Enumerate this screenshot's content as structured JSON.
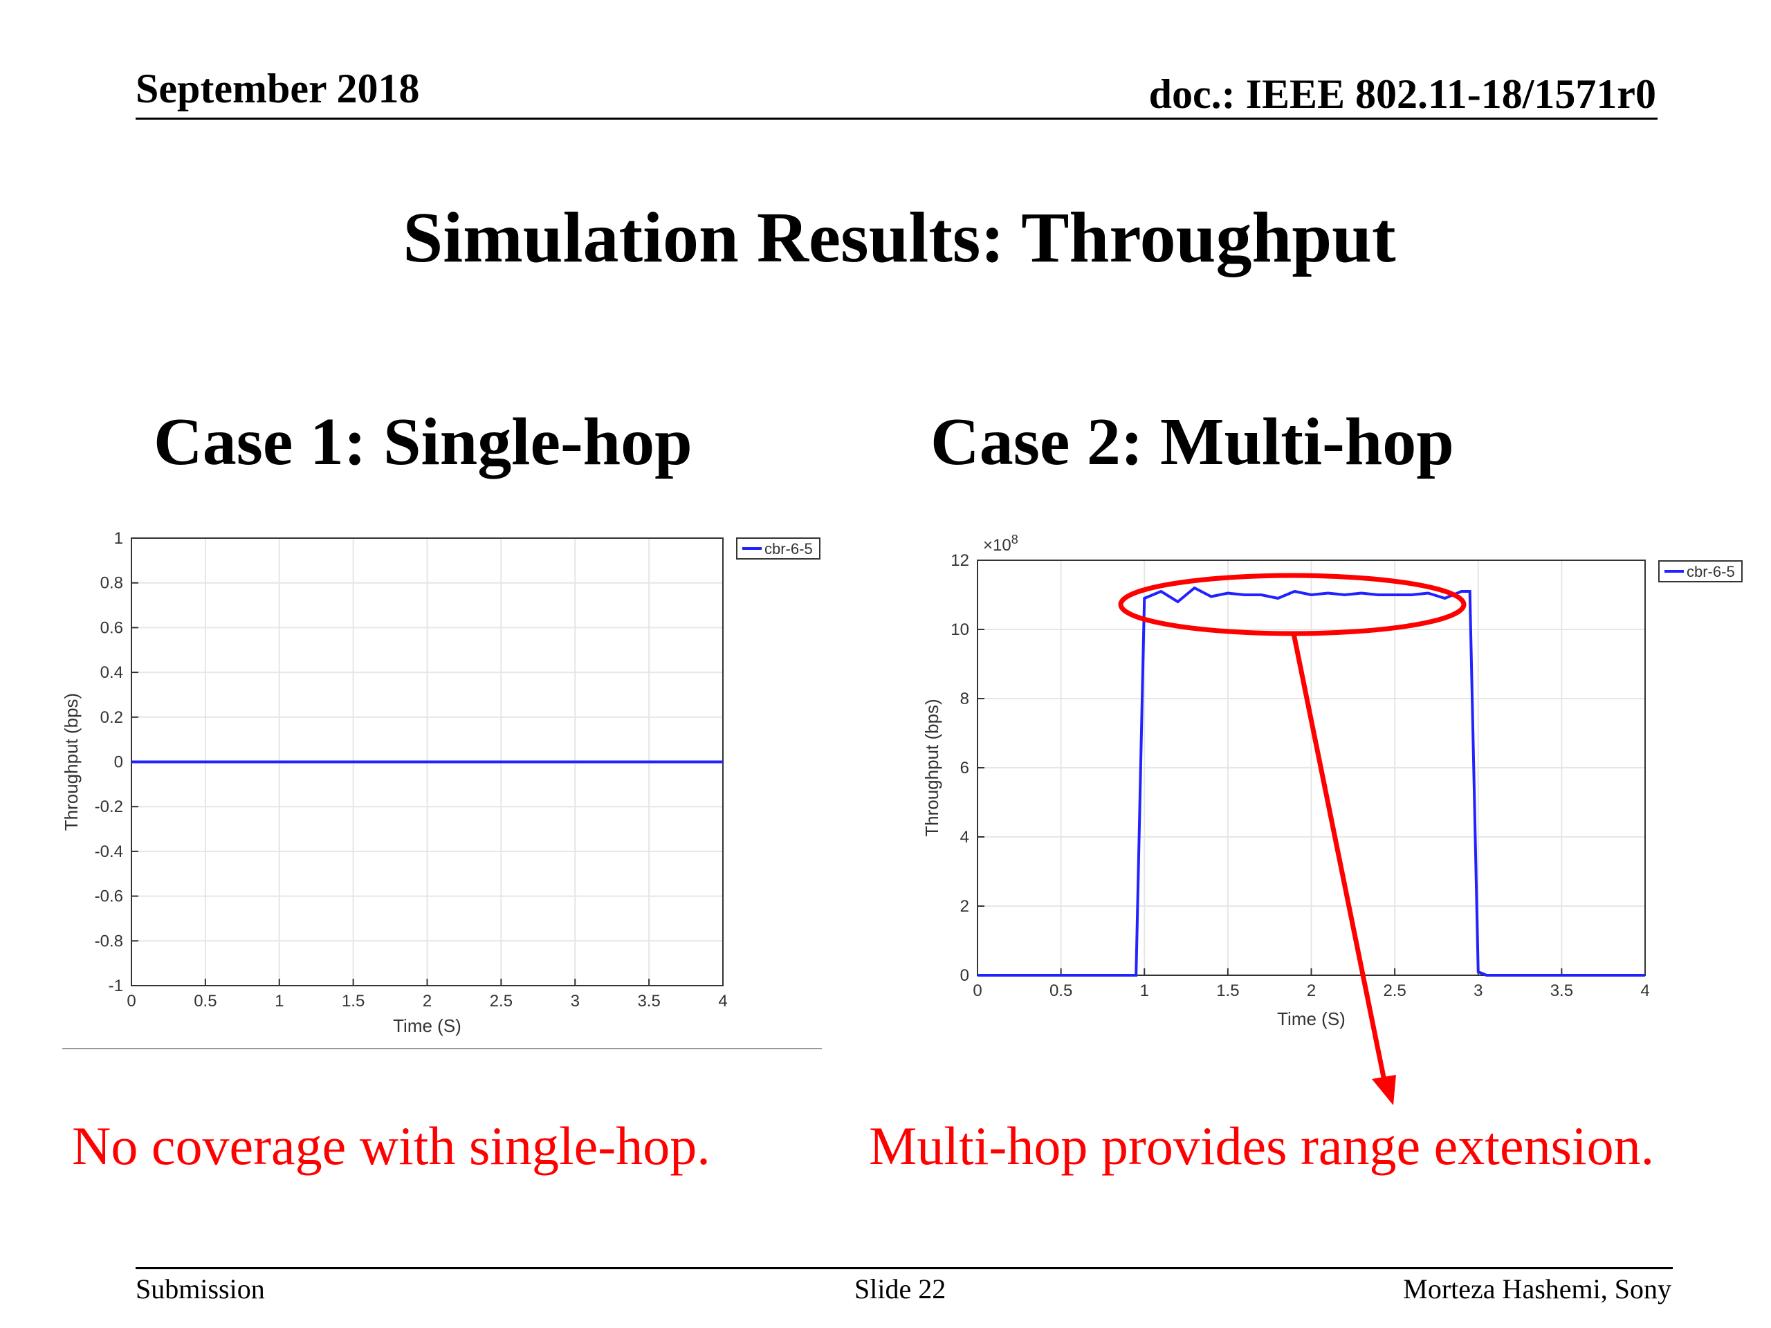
{
  "header": {
    "date": "September 2018",
    "doc": "doc.: IEEE 802.11-18/1571r0"
  },
  "slide": {
    "title": "Simulation Results: Throughput",
    "case1_heading": "Case 1: Single-hop",
    "case2_heading": "Case 2: Multi-hop",
    "case1_note": "No coverage with single-hop.",
    "case2_note": "Multi-hop provides range extension."
  },
  "footer": {
    "left": "Submission",
    "center": "Slide 22",
    "right": "Morteza Hashemi, Sony"
  },
  "colors": {
    "series": "#2222ff",
    "annotation": "#ff0000",
    "grid": "#e6e6e6"
  },
  "chart_data": [
    {
      "type": "line",
      "title": "",
      "xlabel": "Time (S)",
      "ylabel": "Throughput (bps)",
      "xlim": [
        0,
        4
      ],
      "ylim": [
        -1,
        1
      ],
      "x_ticks": [
        0,
        0.5,
        1,
        1.5,
        2,
        2.5,
        3,
        3.5,
        4
      ],
      "x_tick_labels": [
        "0",
        "0.5",
        "1",
        "1.5",
        "2",
        "2.5",
        "3",
        "3.5",
        "4"
      ],
      "y_ticks": [
        -1,
        -0.8,
        -0.6,
        -0.4,
        -0.2,
        0,
        0.2,
        0.4,
        0.6,
        0.8,
        1
      ],
      "y_tick_labels": [
        "-1",
        "-0.8",
        "-0.6",
        "-0.4",
        "-0.2",
        "0",
        "0.2",
        "0.4",
        "0.6",
        "0.8",
        "1"
      ],
      "grid": true,
      "legend_position": "outside-top-right",
      "series": [
        {
          "name": "cbr-6-5",
          "x": [
            0,
            4
          ],
          "y": [
            0,
            0
          ]
        }
      ]
    },
    {
      "type": "line",
      "title": "",
      "xlabel": "Time (S)",
      "ylabel": "Throughput (bps)",
      "y_multiplier": "×10^8",
      "xlim": [
        0,
        4
      ],
      "ylim": [
        0,
        12
      ],
      "x_ticks": [
        0,
        0.5,
        1,
        1.5,
        2,
        2.5,
        3,
        3.5,
        4
      ],
      "x_tick_labels": [
        "0",
        "0.5",
        "1",
        "1.5",
        "2",
        "2.5",
        "3",
        "3.5",
        "4"
      ],
      "y_ticks": [
        0,
        2,
        4,
        6,
        8,
        10,
        12
      ],
      "y_tick_labels": [
        "0",
        "2",
        "4",
        "6",
        "8",
        "10",
        "12"
      ],
      "grid": true,
      "legend_position": "outside-top-right",
      "series": [
        {
          "name": "cbr-6-5",
          "x": [
            0,
            0.9,
            0.95,
            1.0,
            1.1,
            1.2,
            1.3,
            1.4,
            1.5,
            1.6,
            1.7,
            1.8,
            1.9,
            2.0,
            2.1,
            2.2,
            2.3,
            2.4,
            2.5,
            2.6,
            2.7,
            2.8,
            2.9,
            2.95,
            3.0,
            3.05,
            4
          ],
          "y": [
            0,
            0,
            0,
            10.9,
            11.1,
            10.8,
            11.2,
            10.95,
            11.05,
            11.0,
            11.0,
            10.9,
            11.1,
            11.0,
            11.05,
            11.0,
            11.05,
            11.0,
            11.0,
            11.0,
            11.05,
            10.9,
            11.1,
            11.1,
            0.1,
            0,
            0
          ]
        }
      ]
    }
  ],
  "annotation": {
    "shape": "ellipse-with-arrow"
  }
}
